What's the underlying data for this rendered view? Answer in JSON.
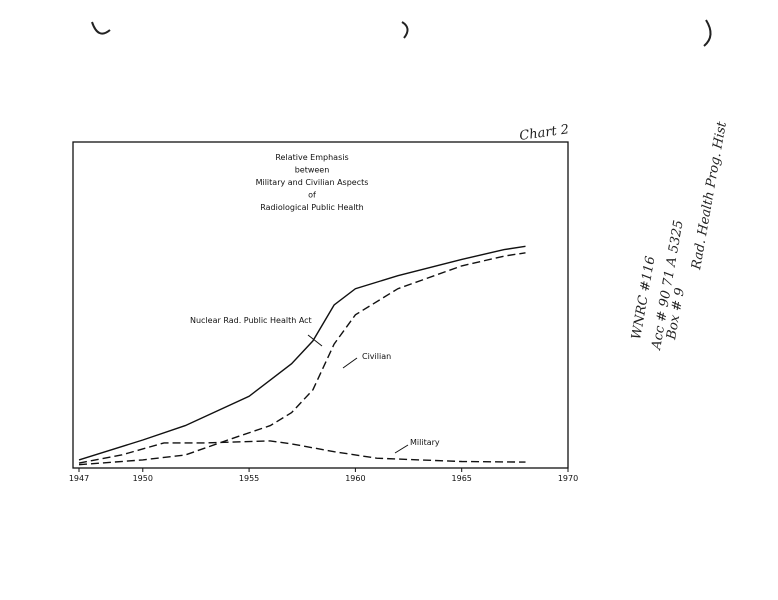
{
  "chart_data": {
    "type": "line",
    "title": [
      "Relative Emphasis",
      "between",
      "Military and Civilian Aspects",
      "of",
      "Radiological Public Health"
    ],
    "xlim": [
      1947,
      1970
    ],
    "xticks": [
      1947,
      1950,
      1955,
      1960,
      1965,
      1970
    ],
    "ylim": [
      0,
      100
    ],
    "series": [
      {
        "name": "Nuclear Rad. Public Health Act",
        "color": "#111111",
        "dash": "solid",
        "x": [
          1947,
          1950,
          1952,
          1955,
          1957,
          1958,
          1959,
          1960,
          1962,
          1965,
          1967,
          1968
        ],
        "values": [
          2.5,
          8.6,
          13,
          22,
          32,
          39,
          50,
          55,
          59,
          64,
          67,
          68
        ]
      },
      {
        "name": "Civilian",
        "color": "#111111",
        "dash": "dashed",
        "x": [
          1947,
          1950,
          1952,
          1954,
          1956,
          1957,
          1958,
          1959,
          1960,
          1962,
          1965,
          1967,
          1968
        ],
        "values": [
          1,
          2.5,
          4,
          8.6,
          13,
          17,
          24,
          38,
          47,
          55,
          62,
          65,
          66
        ]
      },
      {
        "name": "Military",
        "color": "#111111",
        "dash": "dashed",
        "x": [
          1947,
          1949,
          1951,
          1953,
          1956,
          1957,
          1959,
          1961,
          1963,
          1965,
          1968
        ],
        "values": [
          1.5,
          4,
          7.7,
          7.7,
          8.3,
          7.4,
          5,
          3,
          2.5,
          2,
          1.8
        ]
      }
    ]
  },
  "margin_notes": [
    "Chart 2",
    "WNRC #116",
    "Acc # 90 71 A 5325",
    "Box # 9",
    "Rad. Health Prog. Hist"
  ]
}
